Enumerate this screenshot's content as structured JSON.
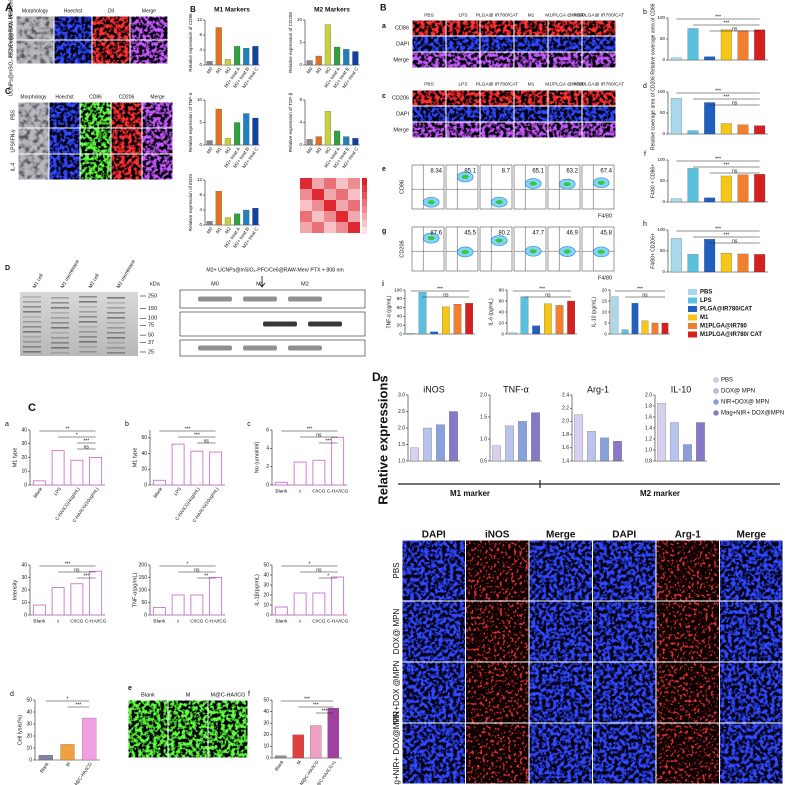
{
  "fig_a": {
    "label": "A",
    "grid1": {
      "columns": [
        "Morphology",
        "Hoechst",
        "DiI",
        "Merge"
      ],
      "rows": [
        "UCNPs@mSiO₂-PFC/Ce6",
        "UCNPs@mSiO₂-PFC/Ce6@RAW-Mem"
      ],
      "stains": [
        "gray",
        "blue",
        "red",
        "purple"
      ]
    },
    "grid2_label": "C",
    "grid2": {
      "columns": [
        "Morphology",
        "Hoechst",
        "CD86",
        "CD206",
        "Merge"
      ],
      "rows": [
        "PBS",
        "LPS/IFN-γ",
        "IL-4"
      ],
      "stains": [
        "gray",
        "blue",
        "green",
        "red",
        "purple"
      ]
    },
    "charts_label": "B",
    "m1_title": "M1 Markers",
    "m2_title": "M2 Markers",
    "charts": [
      {
        "ylabel": "Relative expression of CD86",
        "categories": [
          "M0",
          "M1",
          "M2",
          "M2+ treat A",
          "M2+ treat B",
          "M2+ treat C"
        ],
        "values": [
          1,
          10,
          1.5,
          5,
          4.5,
          5
        ],
        "colors": [
          "#888888",
          "#e07020",
          "#c8d040",
          "#30a040",
          "#2080c0",
          "#1040a0"
        ],
        "ylim": [
          0,
          12
        ],
        "yticks": [
          0,
          4,
          8,
          12
        ]
      },
      {
        "ylabel": "Relative expression of CD206",
        "categories": [
          "M0",
          "M1",
          "M2",
          "M2+ treat A",
          "M2+ treat B",
          "M2+ treat C"
        ],
        "values": [
          1,
          2,
          9,
          4,
          3.5,
          3
        ],
        "colors": [
          "#888888",
          "#e07020",
          "#c8d040",
          "#30a040",
          "#2080c0",
          "#1040a0"
        ],
        "ylim": [
          0,
          10
        ],
        "yticks": [
          0,
          5,
          10
        ]
      },
      {
        "ylabel": "Relative expression of TNF-α",
        "categories": [
          "M0",
          "M1",
          "M2",
          "M2+ treat A",
          "M2+ treat B",
          "M2+ treat C"
        ],
        "values": [
          1,
          8,
          1.5,
          5,
          7,
          6
        ],
        "colors": [
          "#888888",
          "#e07020",
          "#c8d040",
          "#30a040",
          "#2080c0",
          "#1040a0"
        ],
        "ylim": [
          0,
          10
        ],
        "yticks": [
          0,
          5,
          10
        ]
      },
      {
        "ylabel": "Relative expression of TGF-β",
        "categories": [
          "M0",
          "M1",
          "M2",
          "M2+ treat A",
          "M2+ treat B",
          "M2+ treat C"
        ],
        "values": [
          1,
          1.5,
          6,
          2.5,
          1.5,
          1.2
        ],
        "colors": [
          "#888888",
          "#e07020",
          "#c8d040",
          "#30a040",
          "#2080c0",
          "#1040a0"
        ],
        "ylim": [
          0,
          8
        ],
        "yticks": [
          0,
          4,
          8
        ]
      },
      {
        "ylabel": "Relative expression of iNOS",
        "categories": [
          "M0",
          "M1",
          "M2",
          "M2+ treat A",
          "M2+ treat B",
          "M2+ treat C"
        ],
        "values": [
          1,
          9,
          2,
          3,
          4,
          4.5
        ],
        "colors": [
          "#888888",
          "#e07020",
          "#c8d040",
          "#30a040",
          "#2080c0",
          "#1040a0"
        ],
        "ylim": [
          0,
          12
        ],
        "yticks": [
          0,
          4,
          8,
          12
        ]
      }
    ]
  },
  "fig_gel": {
    "label": "D",
    "lanes": [
      "M1 cell",
      "M1 membrane",
      "M2 cell",
      "M2 membrane"
    ],
    "kda_label": "kDa",
    "markers": [
      250,
      150,
      100,
      75,
      50,
      37,
      25
    ],
    "blot_title": "M2+ UCNPs@mSiO₂-PFC/Ce6@RAW-Men/ PTX + 808 nm",
    "blot_lanes": [
      "M0",
      "M1",
      "M2"
    ]
  },
  "fig_b": {
    "label": "B",
    "columns": [
      "PBS",
      "LPS",
      "PLGA@ IR780/CAT",
      "M1",
      "M1/PLGA @IR780",
      "M1/PLGA@ IR780/CAT"
    ],
    "grid_a": {
      "label": "a",
      "rows": [
        "CD86",
        "DAPI",
        "Merge"
      ],
      "stains": [
        "red",
        "blue",
        "purple"
      ]
    },
    "grid_c": {
      "label": "c",
      "rows": [
        "CD206",
        "DAPI",
        "Merge"
      ],
      "stains": [
        "red",
        "blue",
        "purple"
      ]
    },
    "flow_e": {
      "label": "e",
      "ylabel": "CD86",
      "xlabel": "F4/80",
      "values": [
        8.34,
        85.1,
        8.7,
        65.1,
        63.2,
        67.4
      ]
    },
    "flow_g": {
      "label": "g",
      "ylabel": "CD206",
      "xlabel": "F4/80",
      "values": [
        87.6,
        45.5,
        80.2,
        47.7,
        46.9,
        45.8
      ]
    },
    "side": [
      {
        "label": "b",
        "ylabel": "Relative coverage area of CD86",
        "values": [
          5,
          75,
          8,
          72,
          70,
          72
        ],
        "colors": [
          "#a8d8ea",
          "#5bc0de",
          "#1f5fbf",
          "#f5c518",
          "#f08030",
          "#d62020"
        ],
        "ylim": [
          0,
          100
        ],
        "yticks": [
          0,
          50,
          100
        ],
        "sig": [
          "***",
          "***",
          "ns"
        ]
      },
      {
        "label": "d",
        "ylabel": "Relative coverage area of CD206",
        "values": [
          85,
          8,
          75,
          25,
          22,
          20
        ],
        "colors": [
          "#a8d8ea",
          "#5bc0de",
          "#1f5fbf",
          "#f5c518",
          "#f08030",
          "#d62020"
        ],
        "ylim": [
          0,
          100
        ],
        "yticks": [
          0,
          50,
          100
        ],
        "sig": [
          "***",
          "***",
          "ns"
        ]
      },
      {
        "label": "f",
        "ylabel": "F4/80 + CD86+",
        "values": [
          8,
          80,
          10,
          62,
          65,
          66
        ],
        "colors": [
          "#a8d8ea",
          "#5bc0de",
          "#1f5fbf",
          "#f5c518",
          "#f08030",
          "#d62020"
        ],
        "ylim": [
          0,
          100
        ],
        "yticks": [
          0,
          50,
          100
        ],
        "sig": [
          "***",
          "***",
          "ns"
        ]
      },
      {
        "label": "h",
        "ylabel": "F4/80+ CD206+",
        "values": [
          80,
          42,
          78,
          45,
          43,
          42
        ],
        "colors": [
          "#a8d8ea",
          "#5bc0de",
          "#1f5fbf",
          "#f5c518",
          "#f08030",
          "#d62020"
        ],
        "ylim": [
          0,
          100
        ],
        "yticks": [
          0,
          50,
          100
        ],
        "sig": [
          "***",
          "***",
          "ns"
        ]
      }
    ],
    "i_label": "i",
    "cytokines": [
      {
        "ylabel": "TNF-α (pg/mL)",
        "values": [
          2,
          95,
          5,
          62,
          68,
          70
        ],
        "colors": [
          "#a8d8ea",
          "#5bc0de",
          "#1f5fbf",
          "#f5c518",
          "#f08030",
          "#d62020"
        ],
        "ylim": [
          0,
          100
        ],
        "yticks": [
          0,
          20,
          40,
          60,
          80,
          100
        ],
        "sig": [
          "***",
          "ns"
        ]
      },
      {
        "ylabel": "IL-6 (pg/mL)",
        "values": [
          2,
          68,
          15,
          55,
          52,
          60
        ],
        "colors": [
          "#a8d8ea",
          "#5bc0de",
          "#1f5fbf",
          "#f5c518",
          "#f08030",
          "#d62020"
        ],
        "ylim": [
          0,
          80
        ],
        "yticks": [
          0,
          20,
          40,
          60,
          80
        ],
        "sig": [
          "***",
          "ns"
        ]
      },
      {
        "ylabel": "IL-10 (pg/mL)",
        "values": [
          17,
          2,
          14,
          6,
          5,
          5
        ],
        "colors": [
          "#a8d8ea",
          "#5bc0de",
          "#1f5fbf",
          "#f5c518",
          "#f08030",
          "#d62020"
        ],
        "ylim": [
          0,
          20
        ],
        "yticks": [
          0,
          5,
          10,
          15,
          20
        ],
        "sig": [
          "***",
          "ns"
        ]
      }
    ],
    "legend": [
      {
        "name": "PBS",
        "color": "#a8d8ea"
      },
      {
        "name": "LPS",
        "color": "#5bc0de"
      },
      {
        "name": "PLGA@IR780/CAT",
        "color": "#1f5fbf"
      },
      {
        "name": "M1",
        "color": "#f5c518"
      },
      {
        "name": "M1PLGA@IR780",
        "color": "#f08030"
      },
      {
        "name": "M1PLGA@IR780/ CAT",
        "color": "#d62020"
      }
    ]
  },
  "fig_c": {
    "label": "C",
    "charts": [
      {
        "label": "a",
        "ylabel": "M1 type",
        "categories": [
          "Blank",
          "LPS",
          "C-HA/ICG(4ug/mL)",
          "C-HA/ICG(10ug/mL)"
        ],
        "values": [
          3,
          25,
          18,
          20
        ],
        "color": "#d070d0",
        "ylim": [
          0,
          40
        ],
        "yticks": [
          0,
          10,
          20,
          30,
          40
        ],
        "sig": [
          "**",
          "*",
          "***",
          "ns"
        ]
      },
      {
        "label": "b",
        "ylabel": "M1 type",
        "categories": [
          "Blank",
          "LPS",
          "C-HA/ICG(4ug/mL)",
          "C-HA/ICG(10ug/mL)"
        ],
        "values": [
          6,
          52,
          43,
          42
        ],
        "color": "#d070d0",
        "ylim": [
          0,
          70
        ],
        "yticks": [
          0,
          20,
          40,
          60
        ],
        "sig": [
          "***",
          "***",
          "ns"
        ]
      },
      {
        "label": "c",
        "ylabel": "No (umol/ml)",
        "categories": [
          "Blank",
          "c",
          "C/ICG",
          "C-HA/ICG"
        ],
        "values": [
          0.3,
          2.5,
          2.7,
          5.2
        ],
        "color": "#d070d0",
        "ylim": [
          0,
          6
        ],
        "yticks": [
          0,
          2,
          4,
          6
        ],
        "sig": [
          "***",
          "ns",
          "***"
        ]
      },
      {
        "ylabel": "Intensity",
        "categories": [
          "Blank",
          "c",
          "C/ICG",
          "C-HA/ICG"
        ],
        "values": [
          8,
          22,
          25,
          35
        ],
        "color": "#d070d0",
        "ylim": [
          0,
          40
        ],
        "yticks": [
          0,
          10,
          20,
          30,
          40
        ],
        "sig": [
          "***",
          "ns",
          "***"
        ]
      },
      {
        "ylabel": "TNF-α(pg/mL)",
        "categories": [
          "Blank",
          "c",
          "C/ICG",
          "C-HA/ICG"
        ],
        "values": [
          30,
          80,
          80,
          150
        ],
        "color": "#d070d0",
        "ylim": [
          0,
          200
        ],
        "yticks": [
          0,
          50,
          100,
          150,
          200
        ],
        "sig": [
          "*",
          "ns",
          "**"
        ]
      },
      {
        "ylabel": "IL-1β(pg/mL)",
        "categories": [
          "Blank",
          "c",
          "C/ICG",
          "C-HA/ICG"
        ],
        "values": [
          8,
          22,
          22,
          38
        ],
        "color": "#d070d0",
        "ylim": [
          0,
          50
        ],
        "yticks": [
          0,
          10,
          20,
          30,
          40,
          50
        ],
        "sig": [
          "*",
          "ns",
          "*"
        ]
      },
      {
        "label": "d",
        "ylabel": "Cell lysis(%)",
        "categories": [
          "Blank",
          "M",
          "M@C-HA/ICG"
        ],
        "values": [
          4,
          13,
          35
        ],
        "colors": [
          "#8080a0",
          "#f0a040",
          "#f0a0e0"
        ],
        "ylim": [
          0,
          50
        ],
        "yticks": [
          0,
          10,
          20,
          30,
          40,
          50
        ],
        "sig": [
          "*",
          "***"
        ]
      },
      {
        "label": "f",
        "categories": [
          "Blank",
          "M",
          "M@C-HA/ICG",
          "M@C-HA/ICG+L"
        ],
        "values": [
          2,
          20,
          28,
          43
        ],
        "colors": [
          "#909090",
          "#e04040",
          "#f0a0c0",
          "#a040a0"
        ],
        "ylim": [
          0,
          50
        ],
        "yticks": [
          0,
          10,
          20,
          30,
          40,
          50
        ],
        "sig": [
          "***",
          "***",
          "***"
        ]
      }
    ],
    "images": {
      "label": "e",
      "columns": [
        "Blank",
        "M",
        "M@C-HA/ICG"
      ],
      "rows": [],
      "stains": [
        "green",
        "green",
        "green"
      ]
    }
  },
  "fig_d": {
    "label": "D",
    "ylabel": "Relative expressions",
    "charts": [
      {
        "title": "iNOS",
        "values": [
          1.4,
          2.0,
          2.1,
          2.5
        ],
        "colors": [
          "#d8d0ee",
          "#b8c4ec",
          "#8aa0dc",
          "#8878c8"
        ],
        "ylim": [
          1,
          3
        ],
        "yticks": [
          {
            "value": 1,
            "label": "1.0"
          },
          1.5,
          {
            "value": 2,
            "label": "2.0"
          },
          2.5,
          {
            "value": 3,
            "label": "3.0"
          }
        ]
      },
      {
        "title": "TNF-α",
        "values": [
          0.85,
          1.3,
          1.4,
          1.6
        ],
        "colors": [
          "#d8d0ee",
          "#b8c4ec",
          "#8aa0dc",
          "#8878c8"
        ],
        "ylim": [
          0.5,
          2
        ],
        "yticks": [
          0.5,
          {
            "value": 1,
            "label": "1.0"
          },
          1.5,
          {
            "value": 2,
            "label": "2.0"
          }
        ]
      },
      {
        "title": "Arg-1",
        "values": [
          2.1,
          1.85,
          1.75,
          1.7
        ],
        "colors": [
          "#d8d0ee",
          "#b8c4ec",
          "#8aa0dc",
          "#8878c8"
        ],
        "ylim": [
          1.4,
          2.4
        ],
        "yticks": [
          1.4,
          1.6,
          1.8,
          {
            "value": 2,
            "label": "2.0"
          },
          2.2,
          2.4
        ]
      },
      {
        "title": "IL-10",
        "values": [
          1.85,
          1.5,
          1.1,
          1.5
        ],
        "colors": [
          "#d8d0ee",
          "#b8c4ec",
          "#8aa0dc",
          "#8878c8"
        ],
        "ylim": [
          0.8,
          2
        ],
        "yticks": [
          0.8,
          {
            "value": 1,
            "label": "1.0"
          },
          1.2,
          1.4,
          1.6,
          1.8,
          {
            "value": 2,
            "label": "2.0"
          }
        ]
      }
    ],
    "legend": [
      {
        "name": "PBS",
        "color": "#d8d0ee"
      },
      {
        "name": "DOX@ MPN",
        "color": "#b8c4ec"
      },
      {
        "name": "NIR+DOX@ MPN",
        "color": "#8aa0dc"
      },
      {
        "name": "Mag+NIR+ DOX@MPN",
        "color": "#8878c8"
      }
    ],
    "groups": [
      "M1 marker",
      "M2 marker"
    ],
    "grid": {
      "columns": [
        "DAPI",
        "iNOS",
        "Merge",
        "DAPI",
        "Arg-1",
        "Merge"
      ],
      "rows": [
        "PBS",
        "DOX@ MPN",
        "NIR+DOX @MPN",
        "Mag+NIR+ DOX@MPN"
      ],
      "stains": [
        "blue",
        "dim",
        "blue",
        "blue",
        "dim",
        "blue"
      ]
    }
  }
}
